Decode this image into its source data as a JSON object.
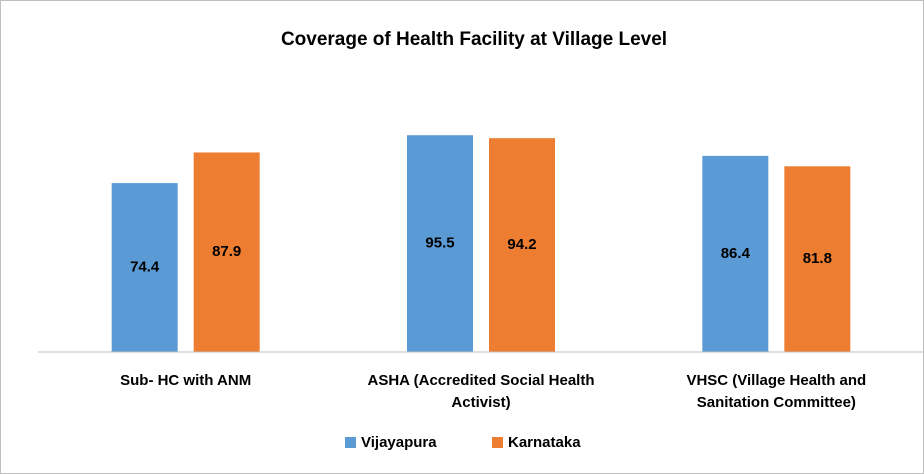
{
  "chart_data": {
    "type": "bar",
    "title": "Coverage of Health Facility at Village Level",
    "categories": [
      "Sub- HC with ANM",
      "ASHA (Accredited Social Health Activist)",
      "VHSC (Village Health and Sanitation Committee)"
    ],
    "series": [
      {
        "name": "Vijayapura",
        "color": "#5b9bd5",
        "values": [
          74.4,
          95.5,
          86.4
        ]
      },
      {
        "name": "Karnataka",
        "color": "#ed7d31",
        "values": [
          87.9,
          94.2,
          81.8
        ]
      }
    ],
    "ylim": [
      0,
      100
    ],
    "legend": "bottom"
  }
}
